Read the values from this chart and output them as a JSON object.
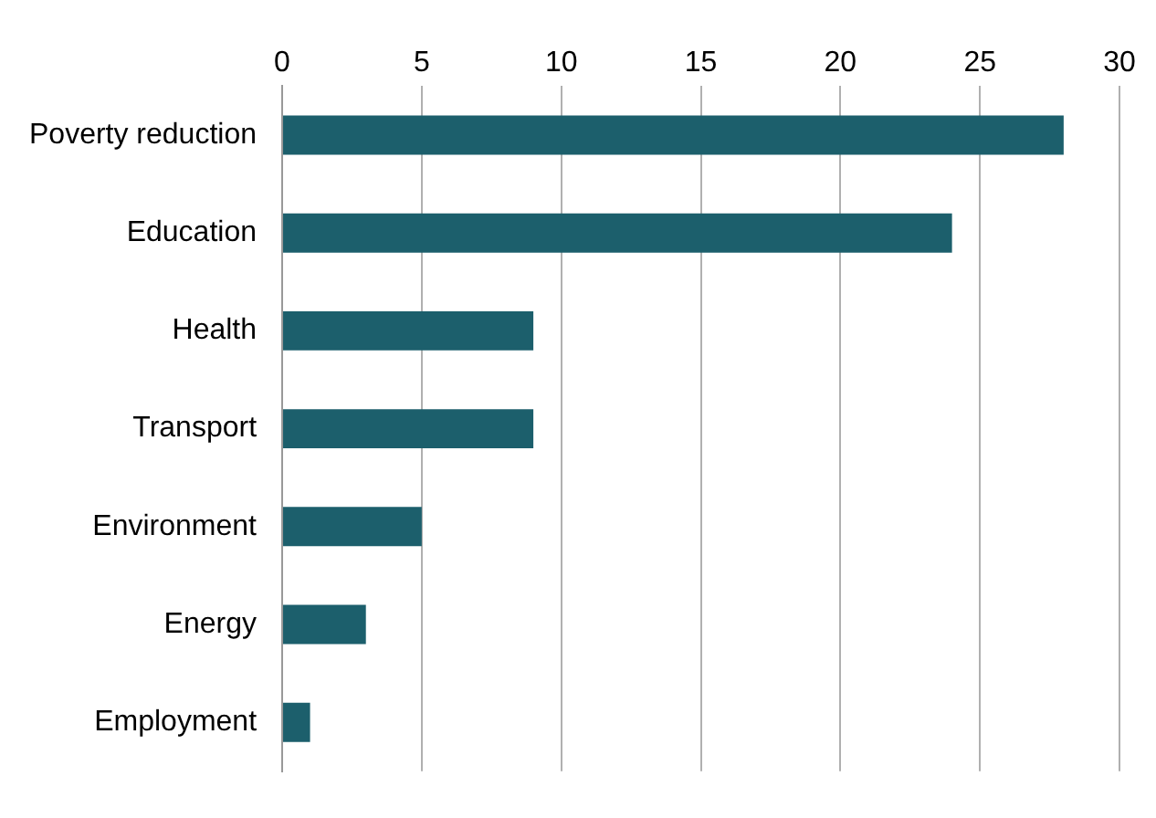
{
  "chart_data": {
    "type": "bar",
    "orientation": "horizontal",
    "categories": [
      "Poverty reduction",
      "Education",
      "Health",
      "Transport",
      "Environment",
      "Energy",
      "Employment"
    ],
    "values": [
      28,
      24,
      9,
      9,
      5,
      3,
      1
    ],
    "color": "#1c5f6c",
    "xlim": [
      0,
      30
    ],
    "xticks": [
      0,
      5,
      10,
      15,
      20,
      25,
      30
    ],
    "grid": "x",
    "legend": false
  }
}
